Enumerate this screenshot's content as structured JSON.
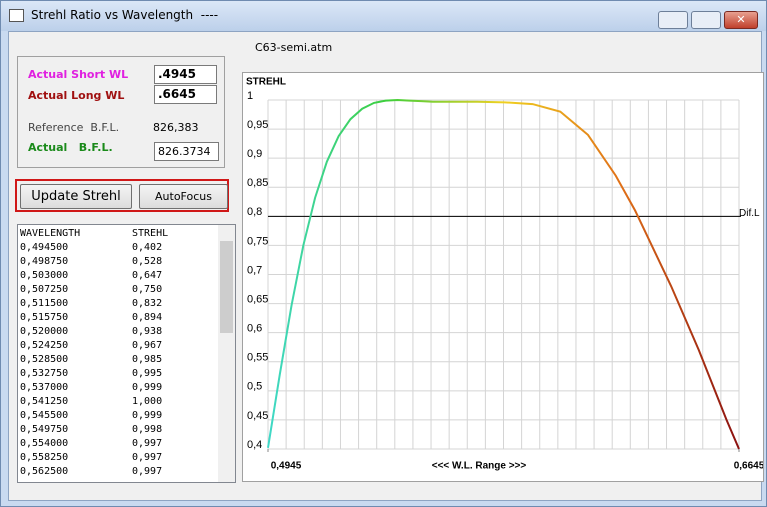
{
  "window": {
    "title": "Strehl Ratio vs Wavelength  ----"
  },
  "file_label": "C63-semi.atm",
  "fields": [
    {
      "label": "Actual Short WL",
      "value": ".4945"
    },
    {
      "label": "Actual Long WL",
      "value": ".6645"
    },
    {
      "label": "Reference  B.F.L.",
      "value": "826,383"
    },
    {
      "label": "Actual   B.F.L.",
      "value": "826.3734"
    }
  ],
  "buttons": [
    "Update Strehl",
    "AutoFocus"
  ],
  "list": {
    "columns": [
      "WAVELENGTH",
      "STREHL"
    ],
    "rows": [
      [
        "0,494500",
        "0,402"
      ],
      [
        "0,498750",
        "0,528"
      ],
      [
        "0,503000",
        "0,647"
      ],
      [
        "0,507250",
        "0,750"
      ],
      [
        "0,511500",
        "0,832"
      ],
      [
        "0,515750",
        "0,894"
      ],
      [
        "0,520000",
        "0,938"
      ],
      [
        "0,524250",
        "0,967"
      ],
      [
        "0,528500",
        "0,985"
      ],
      [
        "0,532750",
        "0,995"
      ],
      [
        "0,537000",
        "0,999"
      ],
      [
        "0,541250",
        "1,000"
      ],
      [
        "0,545500",
        "0,999"
      ],
      [
        "0,549750",
        "0,998"
      ],
      [
        "0,554000",
        "0,997"
      ],
      [
        "0,558250",
        "0,997"
      ],
      [
        "0,562500",
        "0,997"
      ]
    ]
  },
  "chart_data": {
    "type": "line",
    "title": "STREHL",
    "x_label": "<<<  W.L. Range  >>>",
    "x": [
      0.4945,
      0.49875,
      0.503,
      0.50725,
      0.5115,
      0.51575,
      0.52,
      0.52425,
      0.5285,
      0.53275,
      0.537,
      0.54125,
      0.5455,
      0.54975,
      0.554,
      0.55825,
      0.5625,
      0.57,
      0.58,
      0.59,
      0.6,
      0.61,
      0.62,
      0.627,
      0.63,
      0.64,
      0.65,
      0.66,
      0.6645
    ],
    "values": [
      0.402,
      0.528,
      0.647,
      0.75,
      0.832,
      0.894,
      0.938,
      0.967,
      0.985,
      0.995,
      0.999,
      1.0,
      0.999,
      0.998,
      0.997,
      0.997,
      0.997,
      0.997,
      0.996,
      0.993,
      0.98,
      0.94,
      0.87,
      0.81,
      0.78,
      0.68,
      0.57,
      0.45,
      0.4
    ],
    "gradient": [
      "#3fd8c8",
      "#3ccf3c",
      "#f0d020",
      "#e07018",
      "#8b1010"
    ],
    "xlim": [
      0.4945,
      0.6645
    ],
    "xticks": [
      {
        "value": 0.4945,
        "label": "0,4945"
      },
      {
        "value": 0.6645,
        "label": "0,6645"
      }
    ],
    "ylim": [
      0.4,
      1
    ],
    "yticks": [
      {
        "value": 0.4,
        "label": "0,4"
      },
      {
        "value": 0.45,
        "label": "0,45"
      },
      {
        "value": 0.5,
        "label": "0,5"
      },
      {
        "value": 0.55,
        "label": "0,55"
      },
      {
        "value": 0.6,
        "label": "0,6"
      },
      {
        "value": 0.65,
        "label": "0,65"
      },
      {
        "value": 0.7,
        "label": "0,7"
      },
      {
        "value": 0.75,
        "label": "0,75"
      },
      {
        "value": 0.8,
        "label": "0,8"
      },
      {
        "value": 0.85,
        "label": "0,85"
      },
      {
        "value": 0.9,
        "label": "0,9"
      },
      {
        "value": 0.95,
        "label": "0,95"
      },
      1
    ],
    "reference_line": {
      "value": 0.8,
      "label": "Dif.L"
    },
    "grid": true
  }
}
